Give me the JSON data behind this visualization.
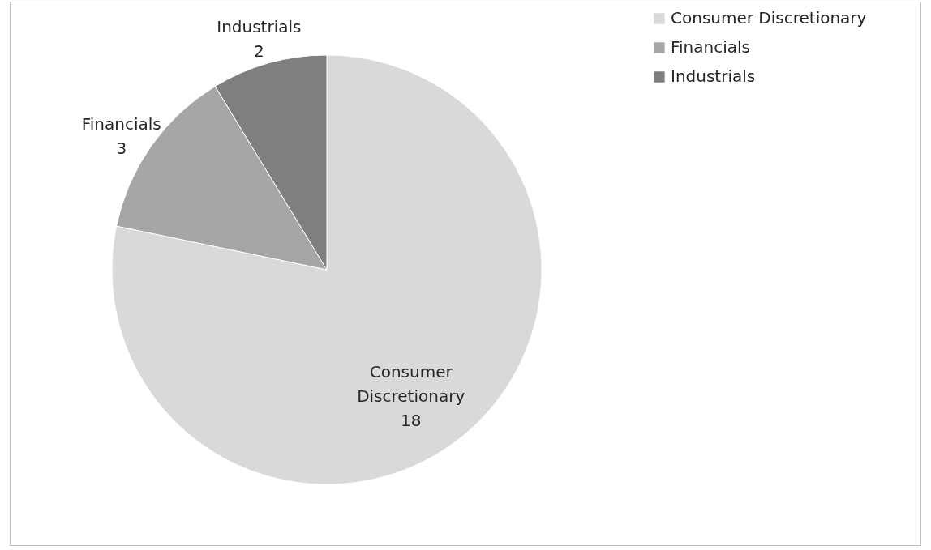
{
  "chart_data": {
    "type": "pie",
    "categories": [
      "Consumer Discretionary",
      "Financials",
      "Industrials"
    ],
    "values": [
      18,
      3,
      2
    ],
    "colors": [
      "#d9d9d9",
      "#a6a6a6",
      "#7f7f7f"
    ],
    "data_labels": true,
    "legend": "right"
  }
}
